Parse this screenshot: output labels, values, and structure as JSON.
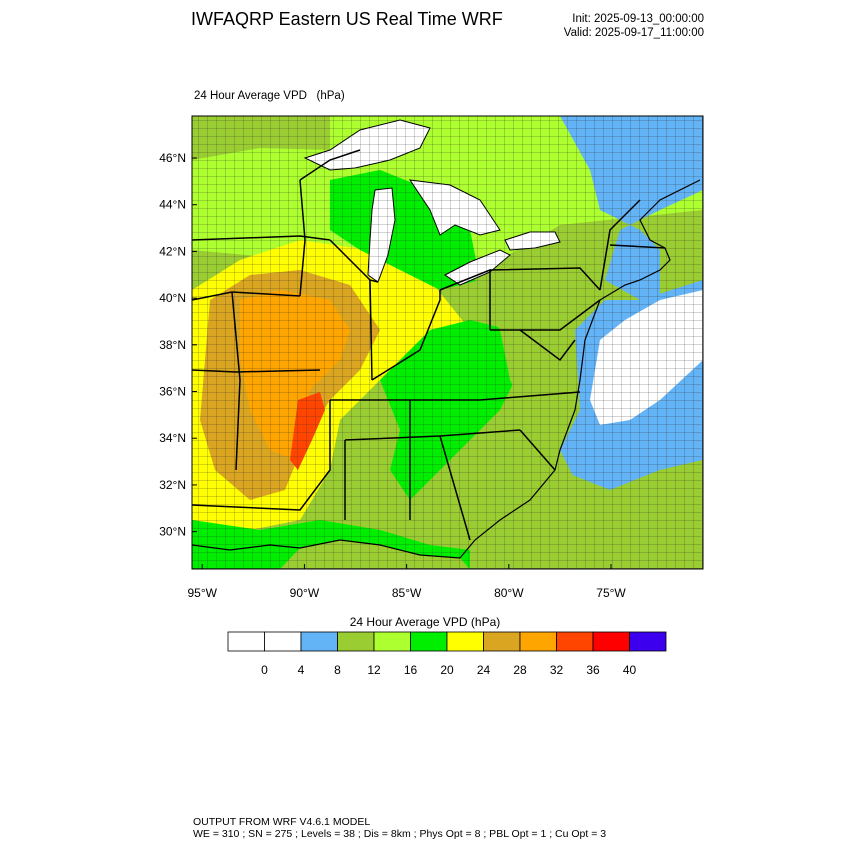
{
  "header": {
    "title": "IWFAQRP Eastern US Real Time WRF",
    "init": "Init: 2025-09-13_00:00:00",
    "valid": "Valid: 2025-09-17_11:00:00"
  },
  "map": {
    "subtitle": "24 Hour Average VPD   (hPa)",
    "lat_labels": [
      "46°N",
      "44°N",
      "42°N",
      "40°N",
      "38°N",
      "36°N",
      "34°N",
      "32°N",
      "30°N"
    ],
    "lon_labels": [
      "95°W",
      "90°W",
      "85°W",
      "80°W",
      "75°W"
    ],
    "lat_range": [
      28.4,
      47.8
    ],
    "lon_range": [
      -95.5,
      -70.5
    ]
  },
  "colorbar": {
    "title": "24 Hour Average VPD  (hPa)",
    "levels": [
      0,
      4,
      8,
      12,
      16,
      20,
      24,
      28,
      32,
      36,
      40
    ],
    "tick_labels": [
      "0",
      "4",
      "8",
      "12",
      "16",
      "20",
      "24",
      "28",
      "32",
      "36",
      "40"
    ],
    "colors": [
      "#ffffff",
      "#ffffff",
      "#63b3f7",
      "#9acd32",
      "#adff2f",
      "#00ee00",
      "#ffff00",
      "#daa520",
      "#ffa500",
      "#ff4500",
      "#ff0000",
      "#3c00ee"
    ]
  },
  "footer": {
    "line1": "OUTPUT FROM WRF V4.6.1 MODEL",
    "line2": "WE = 310 ; SN = 275 ; Levels = 38 ; Dis = 8km ; Phys Opt = 8 ; PBL Opt = 1 ; Cu Opt = 3"
  }
}
